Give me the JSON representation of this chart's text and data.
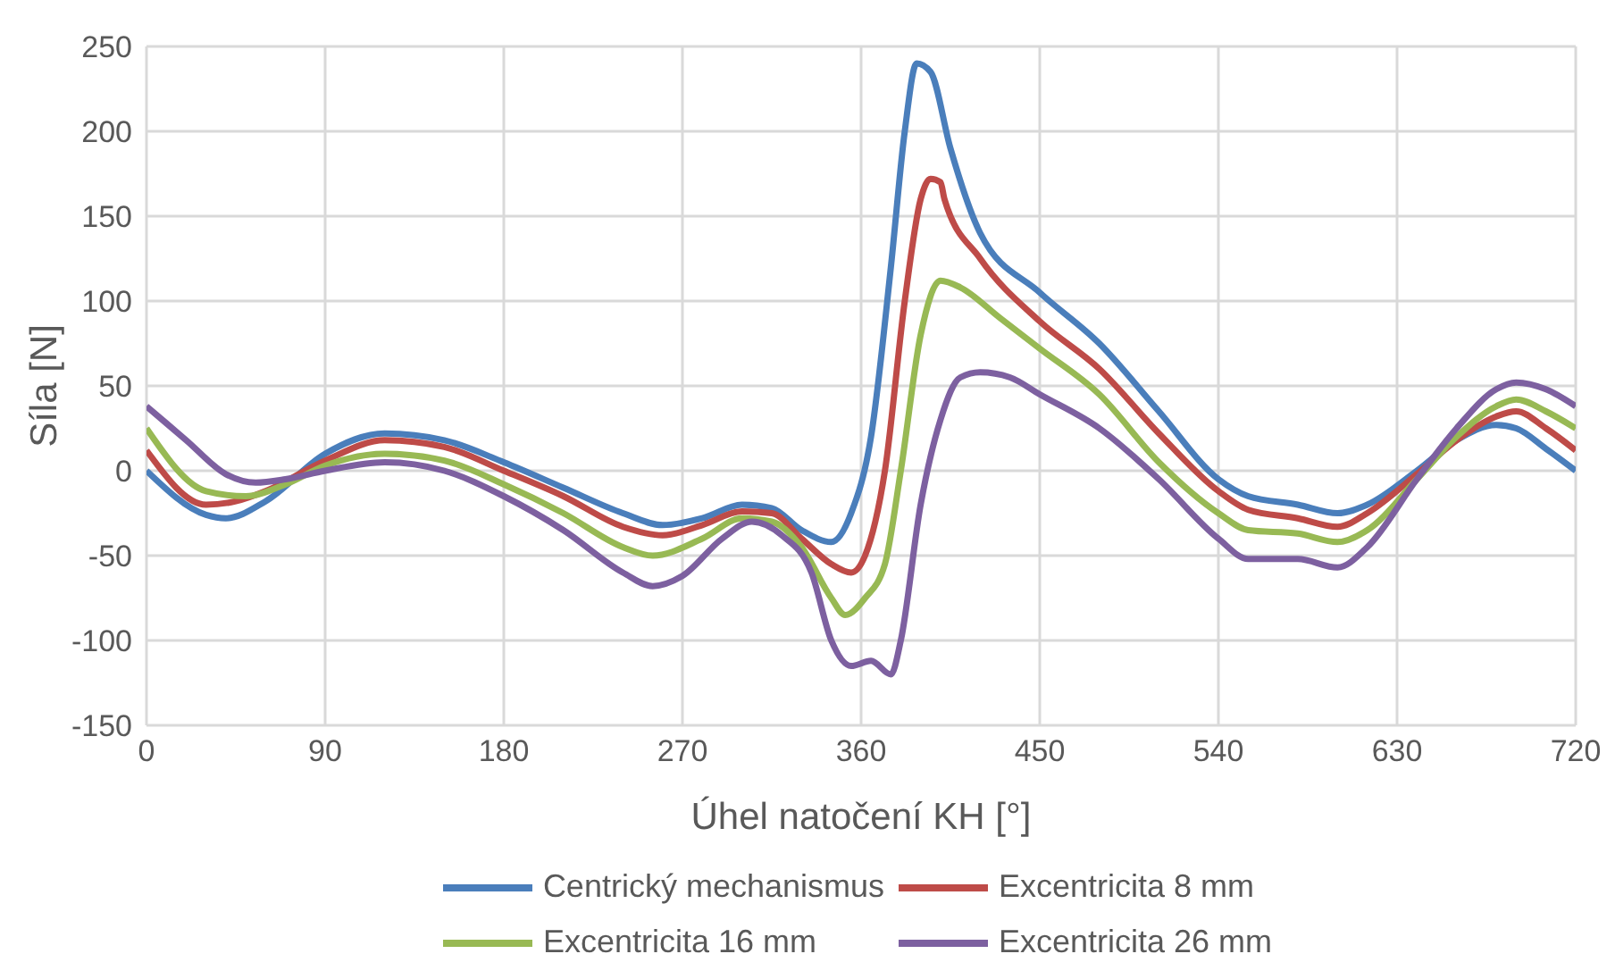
{
  "chart_data": {
    "type": "line",
    "xlabel": "Úhel natočení KH [°]",
    "ylabel": "Síla [N]",
    "xlim": [
      0,
      720
    ],
    "xticks": [
      0,
      90,
      180,
      270,
      360,
      450,
      540,
      630,
      720
    ],
    "ylim": [
      -150,
      250
    ],
    "yticks": [
      -150,
      -100,
      -50,
      0,
      50,
      100,
      150,
      200,
      250
    ],
    "grid": true,
    "legend": "bottom",
    "marker": "none",
    "line_style": "solid",
    "series": [
      {
        "name": "Centrický mechanismus",
        "color": "#4a7ebb",
        "x": [
          0,
          30,
          40,
          60,
          90,
          120,
          150,
          180,
          210,
          240,
          260,
          280,
          300,
          315,
          330,
          345,
          355,
          365,
          375,
          382,
          388,
          395,
          405,
          420,
          450,
          480,
          510,
          540,
          555,
          580,
          600,
          615,
          640,
          660,
          680,
          690,
          705,
          720
        ],
        "values": [
          0,
          -26,
          -28,
          -18,
          10,
          22,
          18,
          5,
          -10,
          -25,
          -32,
          -28,
          -20,
          -22,
          -35,
          -42,
          -25,
          20,
          120,
          200,
          240,
          235,
          190,
          140,
          105,
          75,
          35,
          -5,
          -15,
          -20,
          -25,
          -20,
          0,
          18,
          27,
          25,
          13,
          0
        ]
      },
      {
        "name": "Excentricita 8 mm",
        "color": "#be4b48",
        "x": [
          0,
          30,
          45,
          60,
          90,
          120,
          150,
          180,
          210,
          240,
          260,
          280,
          300,
          315,
          330,
          345,
          355,
          362,
          372,
          382,
          390,
          395,
          400,
          402,
          420,
          450,
          480,
          510,
          540,
          555,
          580,
          600,
          615,
          640,
          660,
          680,
          690,
          705,
          720
        ],
        "values": [
          12,
          -20,
          -18,
          -12,
          6,
          18,
          14,
          0,
          -15,
          -33,
          -38,
          -32,
          -24,
          -25,
          -40,
          -55,
          -60,
          -50,
          0,
          100,
          160,
          172,
          170,
          160,
          125,
          88,
          60,
          22,
          -12,
          -23,
          -28,
          -33,
          -25,
          -2,
          18,
          32,
          35,
          25,
          12
        ]
      },
      {
        "name": "Excentricita 16 mm",
        "color": "#98b954",
        "x": [
          0,
          30,
          50,
          70,
          90,
          120,
          150,
          180,
          210,
          240,
          255,
          280,
          300,
          315,
          330,
          345,
          352,
          362,
          372,
          380,
          390,
          400,
          410,
          430,
          450,
          480,
          510,
          540,
          555,
          580,
          600,
          615,
          640,
          660,
          680,
          690,
          705,
          720
        ],
        "values": [
          25,
          -12,
          -15,
          -8,
          3,
          10,
          6,
          -8,
          -25,
          -45,
          -50,
          -40,
          -28,
          -30,
          -45,
          -75,
          -85,
          -75,
          -55,
          0,
          80,
          112,
          108,
          90,
          72,
          45,
          5,
          -25,
          -35,
          -37,
          -42,
          -35,
          -5,
          20,
          38,
          42,
          35,
          25
        ]
      },
      {
        "name": "Excentricita 26 mm",
        "color": "#7d60a0",
        "x": [
          0,
          20,
          40,
          55,
          70,
          90,
          120,
          150,
          180,
          210,
          240,
          255,
          270,
          290,
          305,
          320,
          335,
          345,
          355,
          365,
          375,
          380,
          390,
          400,
          410,
          420,
          435,
          450,
          480,
          510,
          540,
          555,
          580,
          600,
          615,
          640,
          660,
          680,
          690,
          705,
          720
        ],
        "values": [
          38,
          18,
          -2,
          -7,
          -5,
          0,
          5,
          0,
          -15,
          -35,
          -60,
          -68,
          -62,
          -40,
          -30,
          -38,
          -60,
          -100,
          -115,
          -112,
          -120,
          -100,
          -20,
          30,
          55,
          58,
          55,
          45,
          25,
          -5,
          -40,
          -52,
          -52,
          -57,
          -45,
          -5,
          25,
          48,
          52,
          48,
          38
        ]
      }
    ]
  }
}
